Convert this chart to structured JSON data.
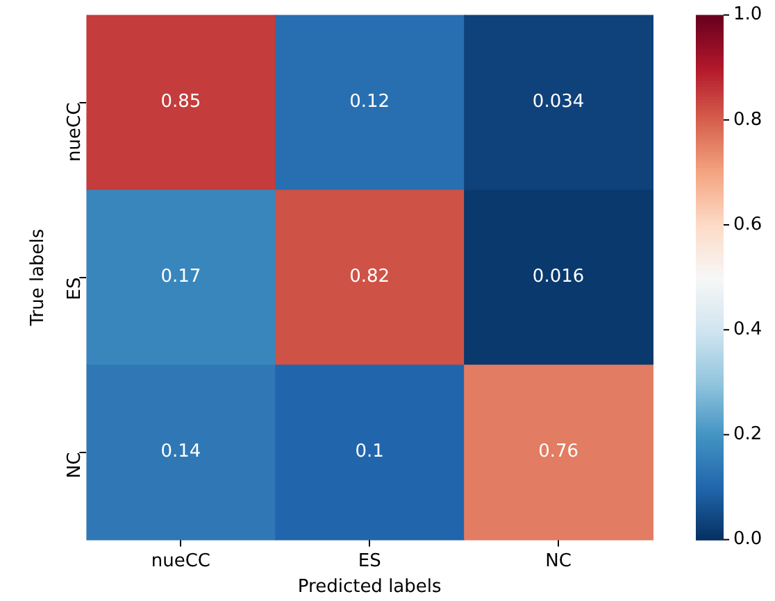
{
  "chart_data": {
    "type": "heatmap",
    "xlabel": "Predicted labels",
    "ylabel": "True labels",
    "categories": [
      "nueCC",
      "ES",
      "NC"
    ],
    "y_categories": [
      "nueCC",
      "ES",
      "NC"
    ],
    "cells": [
      [
        0.85,
        0.12,
        0.034
      ],
      [
        0.17,
        0.82,
        0.016
      ],
      [
        0.14,
        0.1,
        0.76
      ]
    ],
    "data_labels": true,
    "clim": [
      0,
      1
    ],
    "cticks": [
      {
        "value": 0,
        "label": "0.0"
      },
      {
        "value": 0.2,
        "label": "0.2"
      },
      {
        "value": 0.4,
        "label": "0.4"
      },
      {
        "value": 0.6,
        "label": "0.6"
      },
      {
        "value": 0.8,
        "label": "0.8"
      },
      {
        "value": 1,
        "label": "1.0"
      }
    ],
    "grid": false,
    "legend": false
  }
}
